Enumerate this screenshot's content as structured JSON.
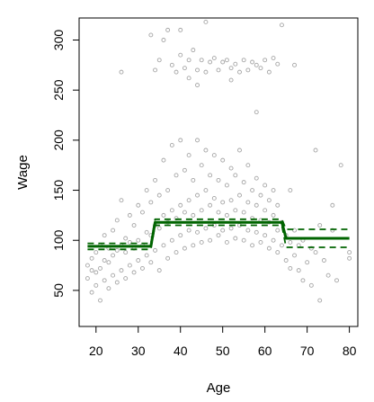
{
  "chart_data": {
    "type": "scatter",
    "title": "",
    "xlabel": "Age",
    "ylabel": "Wage",
    "xlim": [
      16,
      82
    ],
    "ylim": [
      14,
      322
    ],
    "xticks": [
      20,
      30,
      40,
      50,
      60,
      70,
      80
    ],
    "yticks": [
      50,
      100,
      150,
      200,
      250,
      300
    ],
    "grid": false,
    "legend": "none",
    "colors": {
      "points": "#a6a6a6",
      "fit": "#006400"
    },
    "series": [
      {
        "kind": "points",
        "points": [
          [
            18,
            62
          ],
          [
            18,
            75
          ],
          [
            19,
            48
          ],
          [
            19,
            70
          ],
          [
            19,
            82
          ],
          [
            20,
            55
          ],
          [
            20,
            68
          ],
          [
            20,
            88
          ],
          [
            21,
            40
          ],
          [
            21,
            72
          ],
          [
            21,
            95
          ],
          [
            22,
            60
          ],
          [
            22,
            80
          ],
          [
            22,
            105
          ],
          [
            23,
            52
          ],
          [
            23,
            78
          ],
          [
            23,
            92
          ],
          [
            24,
            65
          ],
          [
            24,
            85
          ],
          [
            24,
            110
          ],
          [
            25,
            58
          ],
          [
            25,
            90
          ],
          [
            25,
            120
          ],
          [
            26,
            70
          ],
          [
            26,
            95
          ],
          [
            26,
            140
          ],
          [
            27,
            62
          ],
          [
            27,
            88
          ],
          [
            27,
            102
          ],
          [
            28,
            75
          ],
          [
            28,
            98
          ],
          [
            28,
            125
          ],
          [
            29,
            68
          ],
          [
            29,
            92
          ],
          [
            29,
            115
          ],
          [
            30,
            80
          ],
          [
            30,
            100
          ],
          [
            30,
            135
          ],
          [
            31,
            72
          ],
          [
            31,
            95
          ],
          [
            31,
            128
          ],
          [
            32,
            85
          ],
          [
            32,
            108
          ],
          [
            32,
            150
          ],
          [
            33,
            78
          ],
          [
            33,
            105
          ],
          [
            33,
            138
          ],
          [
            34,
            90
          ],
          [
            34,
            115
          ],
          [
            34,
            160
          ],
          [
            35,
            70
          ],
          [
            35,
            112
          ],
          [
            35,
            145
          ],
          [
            36,
            95
          ],
          [
            36,
            125
          ],
          [
            36,
            180
          ],
          [
            37,
            82
          ],
          [
            37,
            118
          ],
          [
            37,
            150
          ],
          [
            38,
            100
          ],
          [
            38,
            130
          ],
          [
            38,
            195
          ],
          [
            39,
            88
          ],
          [
            39,
            122
          ],
          [
            39,
            165
          ],
          [
            40,
            105
          ],
          [
            40,
            135
          ],
          [
            40,
            200
          ],
          [
            41,
            92
          ],
          [
            41,
            128
          ],
          [
            41,
            170
          ],
          [
            42,
            110
          ],
          [
            42,
            140
          ],
          [
            42,
            185
          ],
          [
            43,
            95
          ],
          [
            43,
            125
          ],
          [
            43,
            160
          ],
          [
            44,
            108
          ],
          [
            44,
            145
          ],
          [
            44,
            200
          ],
          [
            45,
            98
          ],
          [
            45,
            130
          ],
          [
            45,
            175
          ],
          [
            46,
            112
          ],
          [
            46,
            150
          ],
          [
            46,
            190
          ],
          [
            47,
            100
          ],
          [
            47,
            135
          ],
          [
            47,
            165
          ],
          [
            48,
            115
          ],
          [
            48,
            142
          ],
          [
            48,
            185
          ],
          [
            49,
            105
          ],
          [
            49,
            128
          ],
          [
            49,
            160
          ],
          [
            50,
            110
          ],
          [
            50,
            138
          ],
          [
            50,
            180
          ],
          [
            51,
            98
          ],
          [
            51,
            125
          ],
          [
            51,
            155
          ],
          [
            52,
            112
          ],
          [
            52,
            140
          ],
          [
            52,
            172
          ],
          [
            53,
            102
          ],
          [
            53,
            130
          ],
          [
            53,
            165
          ],
          [
            54,
            115
          ],
          [
            54,
            145
          ],
          [
            54,
            190
          ],
          [
            55,
            100
          ],
          [
            55,
            128
          ],
          [
            55,
            158
          ],
          [
            56,
            110
          ],
          [
            56,
            138
          ],
          [
            56,
            175
          ],
          [
            57,
            95
          ],
          [
            57,
            122
          ],
          [
            57,
            150
          ],
          [
            58,
            108
          ],
          [
            58,
            135
          ],
          [
            58,
            162
          ],
          [
            59,
            98
          ],
          [
            59,
            120
          ],
          [
            59,
            145
          ],
          [
            60,
            105
          ],
          [
            60,
            130
          ],
          [
            60,
            155
          ],
          [
            61,
            92
          ],
          [
            61,
            118
          ],
          [
            61,
            140
          ],
          [
            62,
            100
          ],
          [
            62,
            125
          ],
          [
            62,
            150
          ],
          [
            63,
            88
          ],
          [
            63,
            110
          ],
          [
            63,
            135
          ],
          [
            64,
            95
          ],
          [
            64,
            118
          ],
          [
            65,
            80
          ],
          [
            65,
            105
          ],
          [
            66,
            72
          ],
          [
            66,
            98
          ],
          [
            67,
            85
          ],
          [
            67,
            110
          ],
          [
            68,
            70
          ],
          [
            68,
            95
          ],
          [
            69,
            60
          ],
          [
            69,
            100
          ],
          [
            70,
            78
          ],
          [
            71,
            55
          ],
          [
            71,
            92
          ],
          [
            72,
            88
          ],
          [
            73,
            40
          ],
          [
            73,
            115
          ],
          [
            74,
            80
          ],
          [
            75,
            65
          ],
          [
            76,
            110
          ],
          [
            77,
            60
          ],
          [
            78,
            175
          ],
          [
            80,
            82
          ],
          [
            80,
            88
          ],
          [
            72,
            190
          ],
          [
            76,
            135
          ],
          [
            66,
            150
          ],
          [
            33,
            305
          ],
          [
            34,
            270
          ],
          [
            35,
            280
          ],
          [
            37,
            310
          ],
          [
            38,
            275
          ],
          [
            39,
            268
          ],
          [
            40,
            285
          ],
          [
            41,
            272
          ],
          [
            42,
            280
          ],
          [
            43,
            290
          ],
          [
            44,
            270
          ],
          [
            45,
            280
          ],
          [
            46,
            268
          ],
          [
            47,
            278
          ],
          [
            48,
            282
          ],
          [
            49,
            270
          ],
          [
            50,
            278
          ],
          [
            51,
            280
          ],
          [
            52,
            272
          ],
          [
            53,
            276
          ],
          [
            54,
            268
          ],
          [
            55,
            280
          ],
          [
            56,
            270
          ],
          [
            57,
            278
          ],
          [
            58,
            275
          ],
          [
            59,
            272
          ],
          [
            60,
            280
          ],
          [
            61,
            268
          ],
          [
            62,
            282
          ],
          [
            63,
            276
          ],
          [
            64,
            315
          ],
          [
            67,
            275
          ],
          [
            42,
            262
          ],
          [
            46,
            318
          ],
          [
            52,
            260
          ],
          [
            58,
            228
          ],
          [
            44,
            255
          ],
          [
            26,
            268
          ],
          [
            36,
            300
          ],
          [
            40,
            310
          ]
        ]
      },
      {
        "name": "",
        "kind": "step-fit",
        "style": "solid",
        "points": [
          [
            18,
            94
          ],
          [
            33,
            94
          ],
          [
            34,
            118
          ],
          [
            64,
            118
          ],
          [
            65,
            102
          ],
          [
            80,
            102
          ]
        ]
      },
      {
        "name": "",
        "kind": "step-fit",
        "style": "dashed",
        "points": [
          [
            18,
            97
          ],
          [
            33,
            97
          ],
          [
            34,
            121
          ],
          [
            64,
            121
          ],
          [
            65,
            111
          ],
          [
            80,
            111
          ]
        ]
      },
      {
        "name": "",
        "kind": "step-fit",
        "style": "dashed",
        "points": [
          [
            18,
            91
          ],
          [
            33,
            91
          ],
          [
            34,
            115
          ],
          [
            64,
            115
          ],
          [
            65,
            93
          ],
          [
            80,
            93
          ]
        ]
      }
    ]
  }
}
